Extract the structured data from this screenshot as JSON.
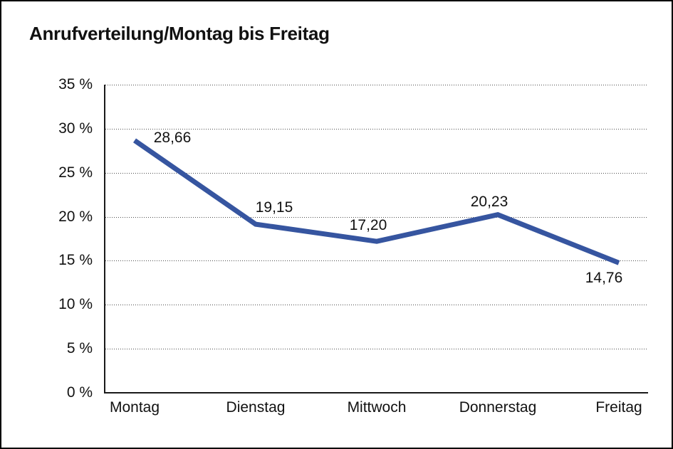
{
  "header": {
    "title": "Anrufverteilung/Montag bis Freitag"
  },
  "chart_data": {
    "type": "line",
    "title": "Anrufverteilung/Montag bis Freitag",
    "categories": [
      "Montag",
      "Dienstag",
      "Mittwoch",
      "Donnerstag",
      "Freitag"
    ],
    "series": [
      {
        "name": "Anrufverteilung",
        "values": [
          28.66,
          19.15,
          17.2,
          20.23,
          14.76
        ]
      }
    ],
    "value_labels": [
      "28,66",
      "19,15",
      "17,20",
      "20,23",
      "14,76"
    ],
    "xlabel": "",
    "ylabel": "",
    "ylim": [
      0,
      35
    ],
    "y_ticks": [
      0,
      5,
      10,
      15,
      20,
      25,
      30,
      35
    ],
    "y_tick_labels": [
      "0 %",
      "5 %",
      "10 %",
      "15 %",
      "20 %",
      "25 %",
      "30 %",
      "35 %"
    ],
    "grid": "horizontal-dotted",
    "legend": "none",
    "line_color": "#3655A0",
    "axis_color": "#1a1a1a"
  }
}
